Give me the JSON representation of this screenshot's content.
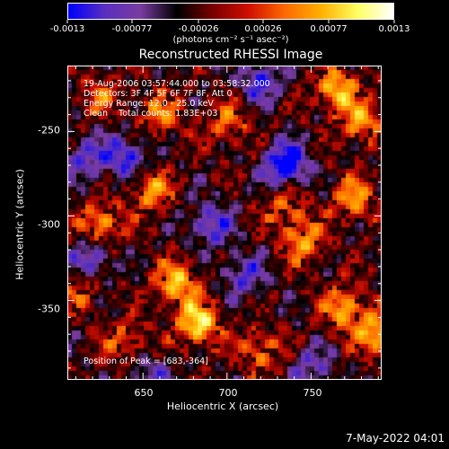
{
  "colorbar": {
    "tick_labels": [
      "-0.0013",
      "-0.00077",
      "-0.00026",
      "0.00026",
      "0.00077",
      "0.0013"
    ],
    "units": "(photons cm⁻² s⁻¹ asec⁻²)",
    "colormap": [
      "#0000ff",
      "#5a30c0",
      "#7a3ca0",
      "#000000",
      "#7a0000",
      "#d01000",
      "#ff6a00",
      "#ffb000",
      "#ffff60",
      "#ffffff"
    ]
  },
  "title": "Reconstructed RHESSI Image",
  "info": {
    "line1": "19-Aug-2006 03:57:44.000 to 03:58:32.000",
    "line2": "Detectors: 3F 4F 5F 6F 7F 8F, Att 0",
    "line3": "Energy Range: 12.0 - 25.0 keV",
    "line4": "Clean    Total counts: 1.83E+03",
    "peak": "Position of Peak = [683,-364]"
  },
  "timestamp": "7-May-2022 04:01",
  "chart_data": {
    "type": "heatmap",
    "title": "Reconstructed RHESSI Image",
    "xlabel": "Heliocentric X (arcsec)",
    "ylabel": "Heliocentric Y (arcsec)",
    "xlim": [
      605,
      792
    ],
    "ylim": [
      -397,
      -211
    ],
    "xticks": [
      650,
      700,
      750
    ],
    "yticks": [
      -250,
      -300,
      -350
    ],
    "colorbar_range": [
      -0.0013,
      0.0013
    ],
    "peak_position": [
      683,
      -364
    ],
    "bright_regions": [
      {
        "x": 683,
        "y": -364,
        "value": 0.0013
      },
      {
        "x": 670,
        "y": -340,
        "value": 0.0011
      },
      {
        "x": 625,
        "y": -305,
        "value": 0.001
      },
      {
        "x": 655,
        "y": -285,
        "value": 0.0009
      },
      {
        "x": 660,
        "y": -240,
        "value": 0.0008
      },
      {
        "x": 700,
        "y": -245,
        "value": 0.0007
      },
      {
        "x": 765,
        "y": -225,
        "value": 0.0011
      },
      {
        "x": 780,
        "y": -245,
        "value": 0.0009
      },
      {
        "x": 775,
        "y": -290,
        "value": 0.0009
      },
      {
        "x": 745,
        "y": -315,
        "value": 0.0009
      },
      {
        "x": 735,
        "y": -295,
        "value": 0.0007
      },
      {
        "x": 770,
        "y": -355,
        "value": 0.001
      },
      {
        "x": 790,
        "y": -370,
        "value": 0.0011
      },
      {
        "x": 720,
        "y": -380,
        "value": 0.0008
      },
      {
        "x": 640,
        "y": -375,
        "value": 0.0007
      },
      {
        "x": 625,
        "y": -230,
        "value": 0.0006
      },
      {
        "x": 612,
        "y": -345,
        "value": 0.0006
      }
    ],
    "dark_regions": [
      {
        "x": 735,
        "y": -270,
        "value": -0.0013
      },
      {
        "x": 640,
        "y": -265,
        "value": -0.0009
      },
      {
        "x": 690,
        "y": -305,
        "value": -0.0008
      },
      {
        "x": 620,
        "y": -325,
        "value": -0.0008
      },
      {
        "x": 615,
        "y": -265,
        "value": -0.0007
      },
      {
        "x": 720,
        "y": -220,
        "value": -0.0008
      },
      {
        "x": 710,
        "y": -335,
        "value": -0.0007
      },
      {
        "x": 655,
        "y": -395,
        "value": -0.0006
      },
      {
        "x": 750,
        "y": -390,
        "value": -0.0006
      }
    ]
  }
}
